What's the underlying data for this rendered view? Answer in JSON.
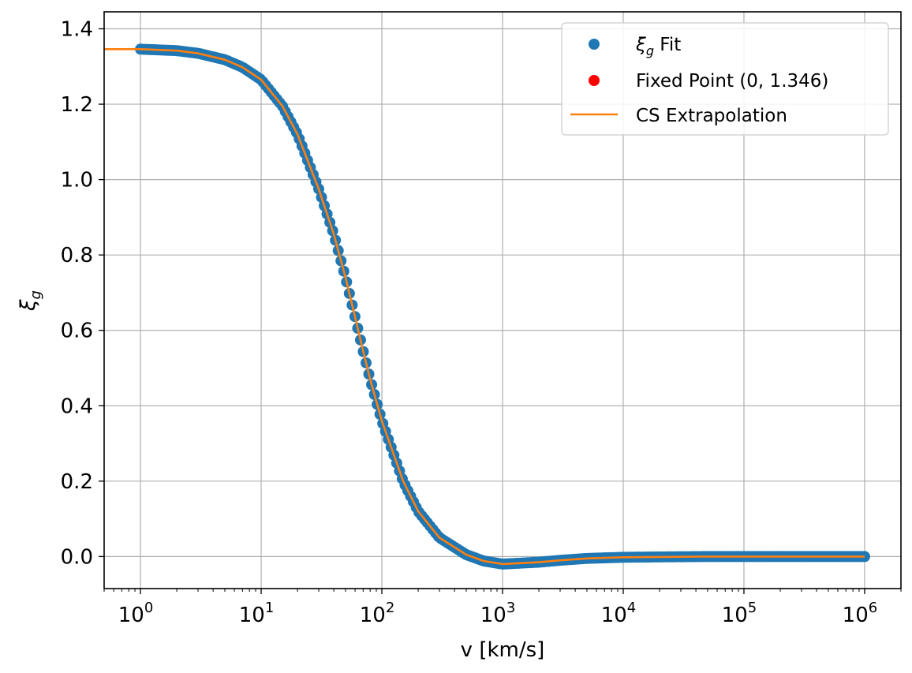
{
  "chart_data": {
    "type": "scatter",
    "xlabel": "v [km/s]",
    "ylabel_symbol": "ξ",
    "ylabel_subscript": "g",
    "x_scale": "log",
    "x_range": [
      0.5,
      2000000
    ],
    "y_range": [
      -0.085,
      1.445
    ],
    "grid": true,
    "legend_position": "top-right",
    "x_ticks": [
      {
        "value": 1,
        "base": "10",
        "exp": "0"
      },
      {
        "value": 10,
        "base": "10",
        "exp": "1"
      },
      {
        "value": 100,
        "base": "10",
        "exp": "2"
      },
      {
        "value": 1000,
        "base": "10",
        "exp": "3"
      },
      {
        "value": 10000,
        "base": "10",
        "exp": "4"
      },
      {
        "value": 100000,
        "base": "10",
        "exp": "5"
      },
      {
        "value": 1000000,
        "base": "10",
        "exp": "6"
      }
    ],
    "y_ticks": [
      {
        "value": 0.0,
        "label": "0.0"
      },
      {
        "value": 0.2,
        "label": "0.2"
      },
      {
        "value": 0.4,
        "label": "0.4"
      },
      {
        "value": 0.6,
        "label": "0.6"
      },
      {
        "value": 0.8,
        "label": "0.8"
      },
      {
        "value": 1.0,
        "label": "1.0"
      },
      {
        "value": 1.2,
        "label": "1.2"
      },
      {
        "value": 1.4,
        "label": "1.4"
      }
    ],
    "series": [
      {
        "name_symbol": "ξ",
        "name_subscript": "g",
        "name_rest": " Fit",
        "kind": "points",
        "color": "#1f77b4",
        "x": [
          1,
          2,
          3,
          5,
          7,
          10,
          15,
          20,
          30,
          40,
          50,
          60,
          70,
          80,
          100,
          150,
          200,
          300,
          500,
          700,
          1000,
          2000,
          3000,
          5000,
          10000,
          20000,
          50000,
          100000,
          1000000
        ],
        "y": [
          1.346,
          1.342,
          1.335,
          1.318,
          1.298,
          1.265,
          1.195,
          1.12,
          0.975,
          0.855,
          0.74,
          0.635,
          0.545,
          0.47,
          0.36,
          0.2,
          0.12,
          0.05,
          0.005,
          -0.012,
          -0.02,
          -0.015,
          -0.01,
          -0.005,
          -0.002,
          -0.001,
          0.0,
          0.0,
          0.0
        ]
      },
      {
        "name": "Fixed Point (0, 1.346)",
        "kind": "points",
        "color": "#ff0000",
        "x": [
          0
        ],
        "y": [
          1.346
        ]
      },
      {
        "name": "CS Extrapolation",
        "kind": "line",
        "color": "#ff7f0e",
        "x": [
          0.5,
          1,
          2,
          3,
          5,
          7,
          10,
          15,
          20,
          30,
          40,
          50,
          60,
          70,
          80,
          100,
          150,
          200,
          300,
          500,
          700,
          1000,
          2000,
          3000,
          5000,
          10000,
          20000,
          50000,
          100000,
          1000000
        ],
        "y": [
          1.346,
          1.346,
          1.342,
          1.335,
          1.318,
          1.298,
          1.265,
          1.195,
          1.12,
          0.975,
          0.855,
          0.74,
          0.635,
          0.545,
          0.47,
          0.36,
          0.2,
          0.12,
          0.05,
          0.005,
          -0.012,
          -0.02,
          -0.015,
          -0.01,
          -0.005,
          -0.002,
          -0.001,
          0.0,
          0.0,
          0.0
        ]
      }
    ]
  }
}
